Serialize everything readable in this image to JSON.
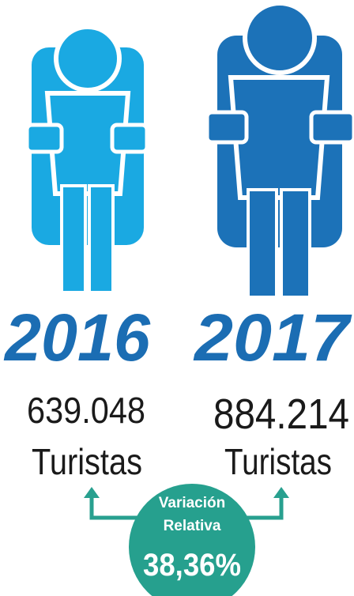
{
  "items": [
    {
      "year": "2016",
      "value": "639.048",
      "unit": "Turistas"
    },
    {
      "year": "2017",
      "value": "884.214",
      "unit": "Turistas"
    }
  ],
  "variation": {
    "line1": "Variación",
    "line2": "Relativa",
    "value": "38,36%"
  }
}
